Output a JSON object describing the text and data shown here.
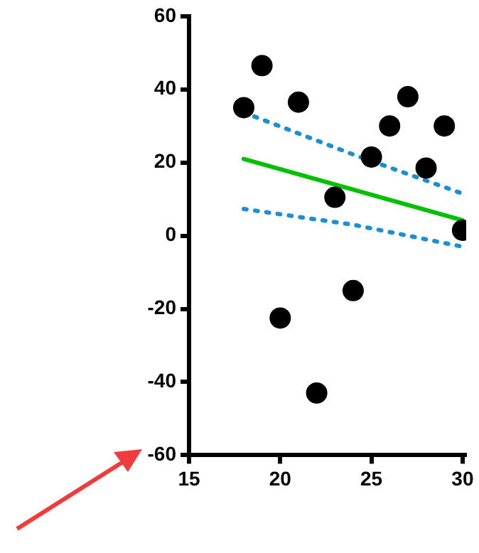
{
  "chart_data": {
    "type": "scatter",
    "marker": "circle",
    "grid": false,
    "legend": false,
    "xlim": [
      15,
      30.2
    ],
    "xticks": [
      15,
      20,
      25,
      30
    ],
    "ylim": [
      -60,
      60
    ],
    "yticks": [
      -60,
      -40,
      -20,
      0,
      20,
      40,
      60
    ],
    "series": [
      {
        "type": "scatter",
        "color": "#000000",
        "x": [
          18,
          19,
          20,
          21,
          22,
          23,
          24,
          25,
          26,
          27,
          28,
          29,
          30
        ],
        "values": [
          35,
          46.5,
          -22.5,
          36.5,
          -43,
          10.5,
          -15,
          21.5,
          30,
          38,
          18.5,
          30,
          1.5
        ]
      },
      {
        "type": "line",
        "color": "#00c000",
        "line_style": "solid",
        "marker": "none",
        "x": [
          18,
          30
        ],
        "values": [
          21,
          4.2
        ]
      },
      {
        "type": "line",
        "color": "#1a8fd6",
        "line_style": "dotted",
        "marker": "none",
        "x": [
          18,
          24,
          30
        ],
        "values": [
          33.7,
          22.2,
          11.5
        ]
      },
      {
        "type": "line",
        "color": "#1a8fd6",
        "line_style": "dotted",
        "marker": "none",
        "x": [
          18,
          24,
          30
        ],
        "values": [
          7.3,
          3,
          -3
        ]
      }
    ]
  }
}
